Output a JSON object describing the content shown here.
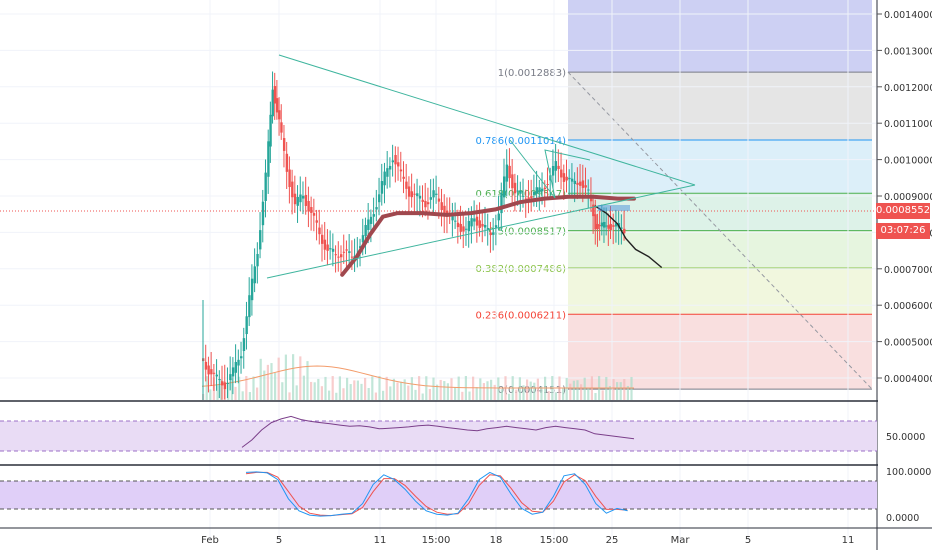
{
  "chart_data": {
    "type": "candlestick",
    "symbol_panel": "price",
    "y_axis": {
      "ticks": [
        "0.0014000",
        "0.0013000",
        "0.0012000",
        "0.0011000",
        "0.0010000",
        "0.0009000",
        "0.0008000",
        "0.0007000",
        "0.0006000",
        "0.0005000",
        "0.0004000"
      ],
      "range": [
        0.00038,
        0.00147
      ]
    },
    "x_axis": {
      "ticks": [
        "Feb",
        "5",
        "11",
        "15:00",
        "18",
        "15:00",
        "25",
        "Mar",
        "5",
        "11"
      ]
    },
    "last_price_label": "0.0008552",
    "countdown_label": "03:07:26",
    "fibonacci": {
      "levels": [
        {
          "label": "1(0.0012883)",
          "price": 0.0012883,
          "line_color": "#787b86",
          "fill": "#e0e0e0"
        },
        {
          "label": "0.786(0.0011014)",
          "price": 0.0011014,
          "line_color": "#2196f3",
          "fill": "#d6ecf8"
        },
        {
          "label": "0.618(0.0009547)",
          "price": 0.0009547,
          "line_color": "#4caf50",
          "fill": "#d7f0e4"
        },
        {
          "label": "0.5(0.0008517)",
          "price": 0.0008517,
          "line_color": "#4caf50",
          "fill": "#e2f3d9"
        },
        {
          "label": "0.382(0.0007486)",
          "price": 0.0007486,
          "line_color": "#8bc34a",
          "fill": "#eef6d8"
        },
        {
          "label": "0.236(0.0006211)",
          "price": 0.0006211,
          "line_color": "#f44336",
          "fill": "#f8d9d9"
        },
        {
          "label": "0(0.0004151)",
          "price": 0.0004151,
          "line_color": "#787b86",
          "fill": null
        }
      ],
      "extension_fill": "#cdd0f3"
    },
    "price_series": [
      {
        "day": 0.0,
        "close": 0.0005
      },
      {
        "day": 0.5,
        "close": 0.00047
      },
      {
        "day": 1.0,
        "close": 0.00044
      },
      {
        "day": 1.5,
        "close": 0.00043
      },
      {
        "day": 2.0,
        "close": 0.00046
      },
      {
        "day": 2.5,
        "close": 0.00052
      },
      {
        "day": 3.0,
        "close": 0.00066
      },
      {
        "day": 3.5,
        "close": 0.0008
      },
      {
        "day": 4.0,
        "close": 0.001
      },
      {
        "day": 4.4,
        "close": 0.00125
      },
      {
        "day": 4.8,
        "close": 0.00115
      },
      {
        "day": 5.3,
        "close": 0.00102
      },
      {
        "day": 5.8,
        "close": 0.00092
      },
      {
        "day": 6.3,
        "close": 0.00095
      },
      {
        "day": 6.8,
        "close": 0.0009
      },
      {
        "day": 7.3,
        "close": 0.00084
      },
      {
        "day": 7.8,
        "close": 0.0008
      },
      {
        "day": 8.3,
        "close": 0.00078
      },
      {
        "day": 8.8,
        "close": 0.0008
      },
      {
        "day": 9.3,
        "close": 0.00077
      },
      {
        "day": 9.8,
        "close": 0.00082
      },
      {
        "day": 10.3,
        "close": 0.00087
      },
      {
        "day": 10.8,
        "close": 0.00093
      },
      {
        "day": 11.3,
        "close": 0.001
      },
      {
        "day": 11.8,
        "close": 0.00106
      },
      {
        "day": 12.3,
        "close": 0.001
      },
      {
        "day": 12.8,
        "close": 0.00096
      },
      {
        "day": 13.3,
        "close": 0.00094
      },
      {
        "day": 13.8,
        "close": 0.00093
      },
      {
        "day": 14.3,
        "close": 0.00095
      },
      {
        "day": 14.8,
        "close": 0.00092
      },
      {
        "day": 15.3,
        "close": 0.00088
      },
      {
        "day": 15.8,
        "close": 0.00087
      },
      {
        "day": 16.3,
        "close": 0.00085
      },
      {
        "day": 16.8,
        "close": 0.00089
      },
      {
        "day": 17.3,
        "close": 0.00086
      },
      {
        "day": 17.8,
        "close": 0.00084
      },
      {
        "day": 18.3,
        "close": 0.0009
      },
      {
        "day": 18.8,
        "close": 0.00103
      },
      {
        "day": 19.3,
        "close": 0.00096
      },
      {
        "day": 19.8,
        "close": 0.00094
      },
      {
        "day": 20.3,
        "close": 0.00095
      },
      {
        "day": 20.8,
        "close": 0.00096
      },
      {
        "day": 21.3,
        "close": 0.00099
      },
      {
        "day": 21.8,
        "close": 0.00103
      },
      {
        "day": 22.3,
        "close": 0.001
      },
      {
        "day": 22.8,
        "close": 0.00098
      },
      {
        "day": 23.3,
        "close": 0.00099
      },
      {
        "day": 23.8,
        "close": 0.00095
      },
      {
        "day": 24.2,
        "close": 0.00087
      },
      {
        "day": 24.6,
        "close": 0.00086
      },
      {
        "day": 25.0,
        "close": 0.00087
      },
      {
        "day": 25.5,
        "close": 0.00086
      },
      {
        "day": 26.0,
        "close": 0.000855
      }
    ],
    "moving_average": [
      {
        "day": 8.6,
        "value": 0.00073
      },
      {
        "day": 9.5,
        "value": 0.00078
      },
      {
        "day": 10.3,
        "value": 0.00084
      },
      {
        "day": 11.1,
        "value": 0.00089
      },
      {
        "day": 12.0,
        "value": 0.0009
      },
      {
        "day": 13.5,
        "value": 0.0009
      },
      {
        "day": 15.0,
        "value": 0.000895
      },
      {
        "day": 16.5,
        "value": 0.0009
      },
      {
        "day": 18.0,
        "value": 0.00091
      },
      {
        "day": 19.5,
        "value": 0.00093
      },
      {
        "day": 21.0,
        "value": 0.00094
      },
      {
        "day": 22.5,
        "value": 0.000945
      },
      {
        "day": 24.0,
        "value": 0.000945
      },
      {
        "day": 25.5,
        "value": 0.00094
      },
      {
        "day": 26.5,
        "value": 0.00094
      }
    ],
    "projection_path": [
      {
        "day": 24.1,
        "value": 0.00092
      },
      {
        "day": 24.8,
        "value": 0.0009
      },
      {
        "day": 25.5,
        "value": 0.00087
      },
      {
        "day": 26.0,
        "value": 0.00083
      },
      {
        "day": 26.6,
        "value": 0.0008
      },
      {
        "day": 27.4,
        "value": 0.00078
      },
      {
        "day": 28.2,
        "value": 0.00075
      }
    ],
    "rsi": {
      "ticks": [
        "50.0000"
      ],
      "values": [
        30,
        42,
        58,
        70,
        76,
        80,
        75,
        72,
        70,
        68,
        66,
        64,
        65,
        63,
        60,
        61,
        62,
        63,
        65,
        66,
        64,
        62,
        60,
        58,
        57,
        60,
        62,
        64,
        62,
        60,
        58,
        62,
        64,
        62,
        60,
        58,
        52,
        50,
        48,
        46,
        44
      ],
      "band": [
        30,
        70
      ]
    },
    "stochastic": {
      "ticks": [
        "100.0000",
        "0.0000"
      ],
      "k": [
        95,
        96,
        94,
        80,
        40,
        15,
        6,
        4,
        5,
        8,
        10,
        30,
        70,
        90,
        80,
        60,
        35,
        15,
        8,
        6,
        10,
        40,
        80,
        95,
        85,
        50,
        20,
        8,
        12,
        45,
        88,
        92,
        70,
        30,
        10,
        20,
        15
      ],
      "d": [
        92,
        95,
        95,
        85,
        55,
        25,
        10,
        6,
        5,
        7,
        9,
        22,
        55,
        82,
        82,
        68,
        45,
        24,
        12,
        8,
        9,
        30,
        68,
        90,
        88,
        62,
        32,
        14,
        12,
        35,
        75,
        90,
        78,
        45,
        18,
        18,
        16
      ],
      "band": [
        20,
        80
      ]
    }
  }
}
